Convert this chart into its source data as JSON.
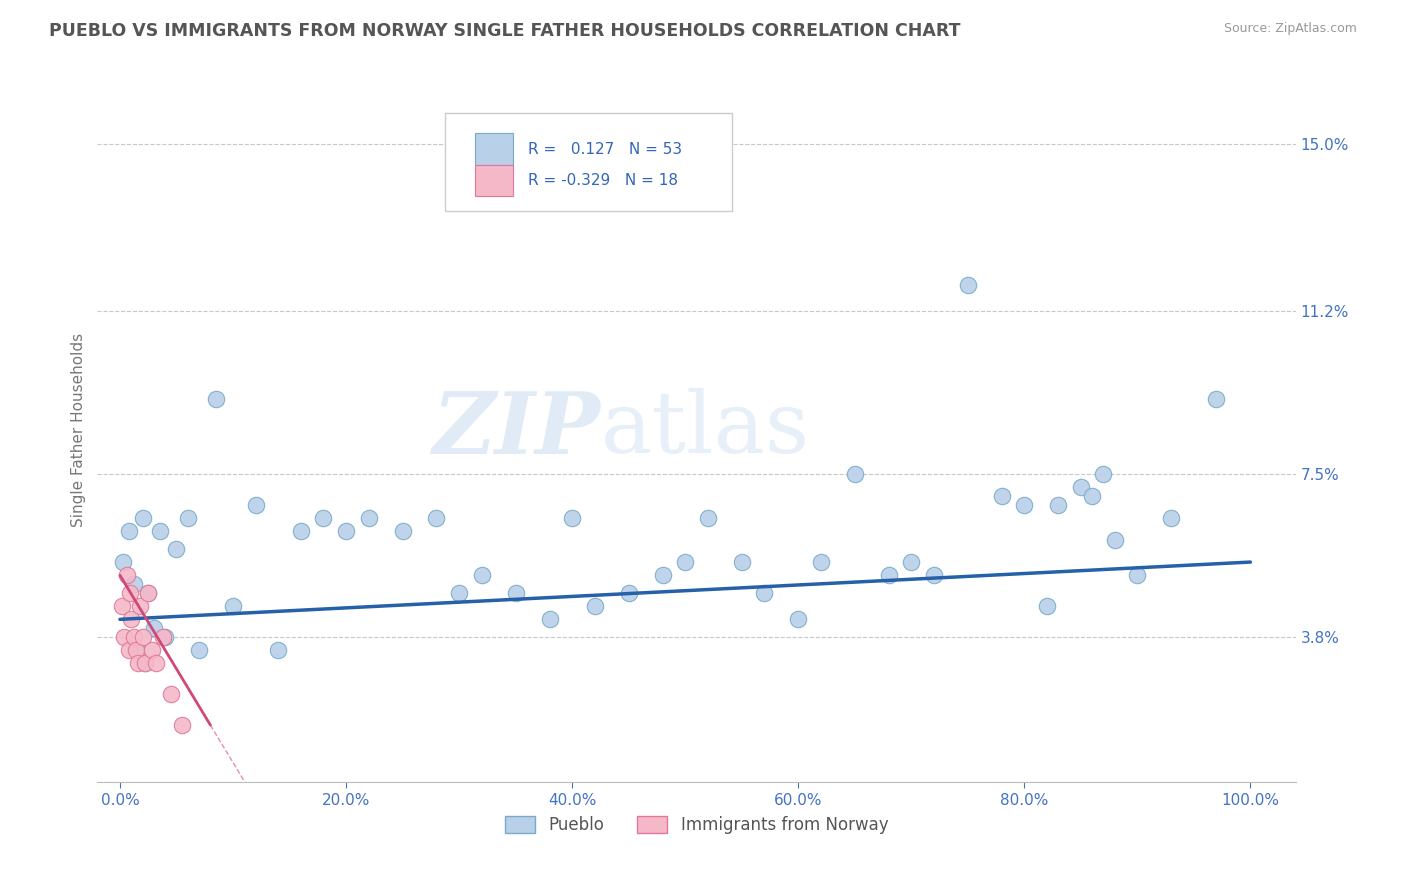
{
  "title": "PUEBLO VS IMMIGRANTS FROM NORWAY SINGLE FATHER HOUSEHOLDS CORRELATION CHART",
  "source": "Source: ZipAtlas.com",
  "ylabel": "Single Father Households",
  "watermark_zip": "ZIP",
  "watermark_atlas": "atlas",
  "legend_entries": [
    {
      "label": "Pueblo",
      "R": 0.127,
      "N": 53,
      "color": "#b8d0e8",
      "edge": "#7aaac8"
    },
    {
      "label": "Immigrants from Norway",
      "R": -0.329,
      "N": 18,
      "color": "#f5b8c8",
      "edge": "#e07898"
    }
  ],
  "ytick_labels": [
    "3.8%",
    "7.5%",
    "11.2%",
    "15.0%"
  ],
  "ytick_values": [
    3.8,
    7.5,
    11.2,
    15.0
  ],
  "xtick_labels": [
    "0.0%",
    "20.0%",
    "40.0%",
    "60.0%",
    "80.0%",
    "100.0%"
  ],
  "xtick_values": [
    0.0,
    20.0,
    40.0,
    60.0,
    80.0,
    100.0
  ],
  "xlim": [
    -2,
    104
  ],
  "ylim": [
    0.5,
    16.5
  ],
  "background_color": "#ffffff",
  "grid_color": "#c8c8c8",
  "title_color": "#555555",
  "axis_label_color": "#777777",
  "tick_color": "#4472c4",
  "scatter_blue_color": "#b8d0e8",
  "scatter_blue_edge": "#7aaac8",
  "scatter_pink_color": "#f5b8c8",
  "scatter_pink_edge": "#e07898",
  "line_blue_color": "#2660a8",
  "line_pink_color": "#d04878",
  "blue_line_x0": 0,
  "blue_line_x1": 100,
  "blue_line_y0": 4.2,
  "blue_line_y1": 5.5,
  "pink_line_x0": 0,
  "pink_line_x1": 8,
  "pink_line_y0": 5.2,
  "pink_line_y1": 1.8,
  "blue_x": [
    0.3,
    0.8,
    1.2,
    1.5,
    2.0,
    2.2,
    2.5,
    3.0,
    3.5,
    4.0,
    5.0,
    6.0,
    7.0,
    8.5,
    10.0,
    12.0,
    14.0,
    16.0,
    18.0,
    20.0,
    22.0,
    25.0,
    28.0,
    30.0,
    32.0,
    35.0,
    38.0,
    40.0,
    42.0,
    45.0,
    48.0,
    50.0,
    52.0,
    55.0,
    57.0,
    60.0,
    62.0,
    65.0,
    68.0,
    70.0,
    72.0,
    75.0,
    78.0,
    80.0,
    82.0,
    83.0,
    85.0,
    86.0,
    87.0,
    88.0,
    90.0,
    93.0,
    97.0
  ],
  "blue_y": [
    5.5,
    6.2,
    5.0,
    3.5,
    6.5,
    3.2,
    4.8,
    4.0,
    6.2,
    3.8,
    5.8,
    6.5,
    3.5,
    9.2,
    4.5,
    6.8,
    3.5,
    6.2,
    6.5,
    6.2,
    6.5,
    6.2,
    6.5,
    4.8,
    5.2,
    4.8,
    4.2,
    6.5,
    4.5,
    4.8,
    5.2,
    5.5,
    6.5,
    5.5,
    4.8,
    4.2,
    5.5,
    7.5,
    5.2,
    5.5,
    5.2,
    11.8,
    7.0,
    6.8,
    4.5,
    6.8,
    7.2,
    7.0,
    7.5,
    6.0,
    5.2,
    6.5,
    9.2
  ],
  "pink_x": [
    0.2,
    0.4,
    0.6,
    0.8,
    0.9,
    1.0,
    1.2,
    1.4,
    1.6,
    1.8,
    2.0,
    2.2,
    2.5,
    2.8,
    3.2,
    3.8,
    4.5,
    5.5
  ],
  "pink_y": [
    4.5,
    3.8,
    5.2,
    3.5,
    4.8,
    4.2,
    3.8,
    3.5,
    3.2,
    4.5,
    3.8,
    3.2,
    4.8,
    3.5,
    3.2,
    3.8,
    2.5,
    1.8
  ]
}
